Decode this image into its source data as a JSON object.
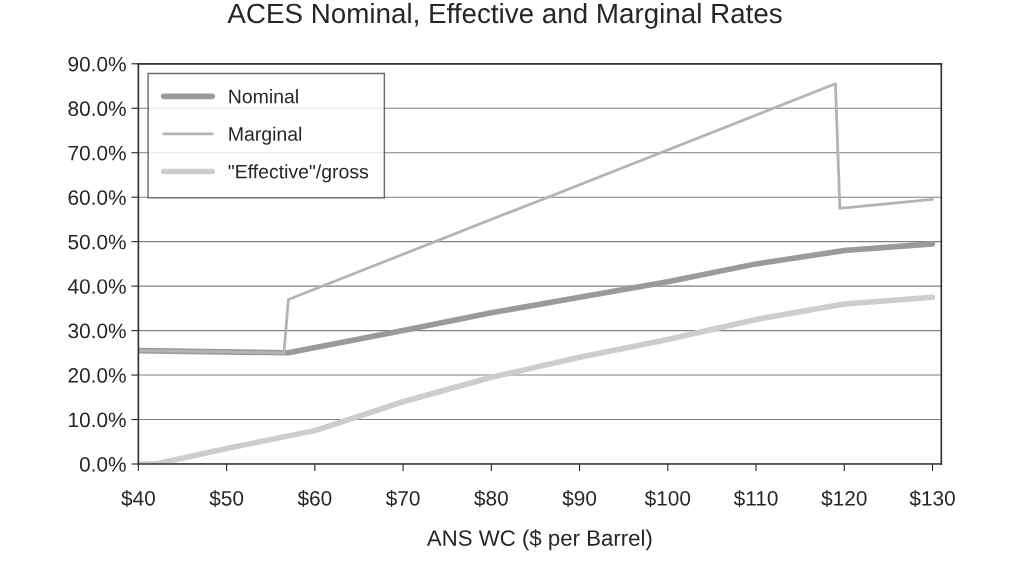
{
  "chart_data": {
    "type": "line",
    "title": "ACES Nominal, Effective and Marginal Rates",
    "xlabel": "ANS WC ($ per Barrel)",
    "series": [
      {
        "name": "Nominal",
        "color": "#9a9a9a",
        "x": [
          40,
          57,
          70,
          80,
          90,
          100,
          110,
          120,
          130
        ],
        "values": [
          25.5,
          25,
          30,
          34,
          37.5,
          41,
          45,
          48,
          49.5
        ]
      },
      {
        "name": "Marginal",
        "color": "#b4b4b4",
        "x": [
          40,
          56.5,
          57,
          119,
          119.5,
          130
        ],
        "values": [
          25.5,
          25,
          37,
          85.5,
          57.5,
          59.5
        ]
      },
      {
        "name": "\"Effective\"/gross",
        "color": "#cdcdcd",
        "x": [
          40,
          42,
          50,
          60,
          70,
          80,
          90,
          100,
          110,
          120,
          130
        ],
        "values": [
          0,
          0,
          3.5,
          7.5,
          14,
          19.5,
          24,
          28,
          32.5,
          36,
          37.5
        ]
      }
    ],
    "xlim": [
      40,
      131
    ],
    "xticks": [
      {
        "value": 40,
        "label": "$40"
      },
      {
        "value": 50,
        "label": "$50"
      },
      {
        "value": 60,
        "label": "$60"
      },
      {
        "value": 70,
        "label": "$70"
      },
      {
        "value": 80,
        "label": "$80"
      },
      {
        "value": 90,
        "label": "$90"
      },
      {
        "value": 100,
        "label": "$100"
      },
      {
        "value": 110,
        "label": "$110"
      },
      {
        "value": 120,
        "label": "$120"
      },
      {
        "value": 130,
        "label": "$130"
      }
    ],
    "ylim": [
      0,
      90
    ],
    "yticks": [
      {
        "value": 0,
        "label": "0.0%"
      },
      {
        "value": 10,
        "label": "10.0%"
      },
      {
        "value": 20,
        "label": "20.0%"
      },
      {
        "value": 30,
        "label": "30.0%"
      },
      {
        "value": 40,
        "label": "40.0%"
      },
      {
        "value": 50,
        "label": "50.0%"
      },
      {
        "value": 60,
        "label": "60.0%"
      },
      {
        "value": 70,
        "label": "70.0%"
      },
      {
        "value": 80,
        "label": "80.0%"
      },
      {
        "value": 90,
        "label": "90.0%"
      }
    ],
    "grid": "y",
    "legend": "top left",
    "marker": "none",
    "line_style": "solid"
  }
}
